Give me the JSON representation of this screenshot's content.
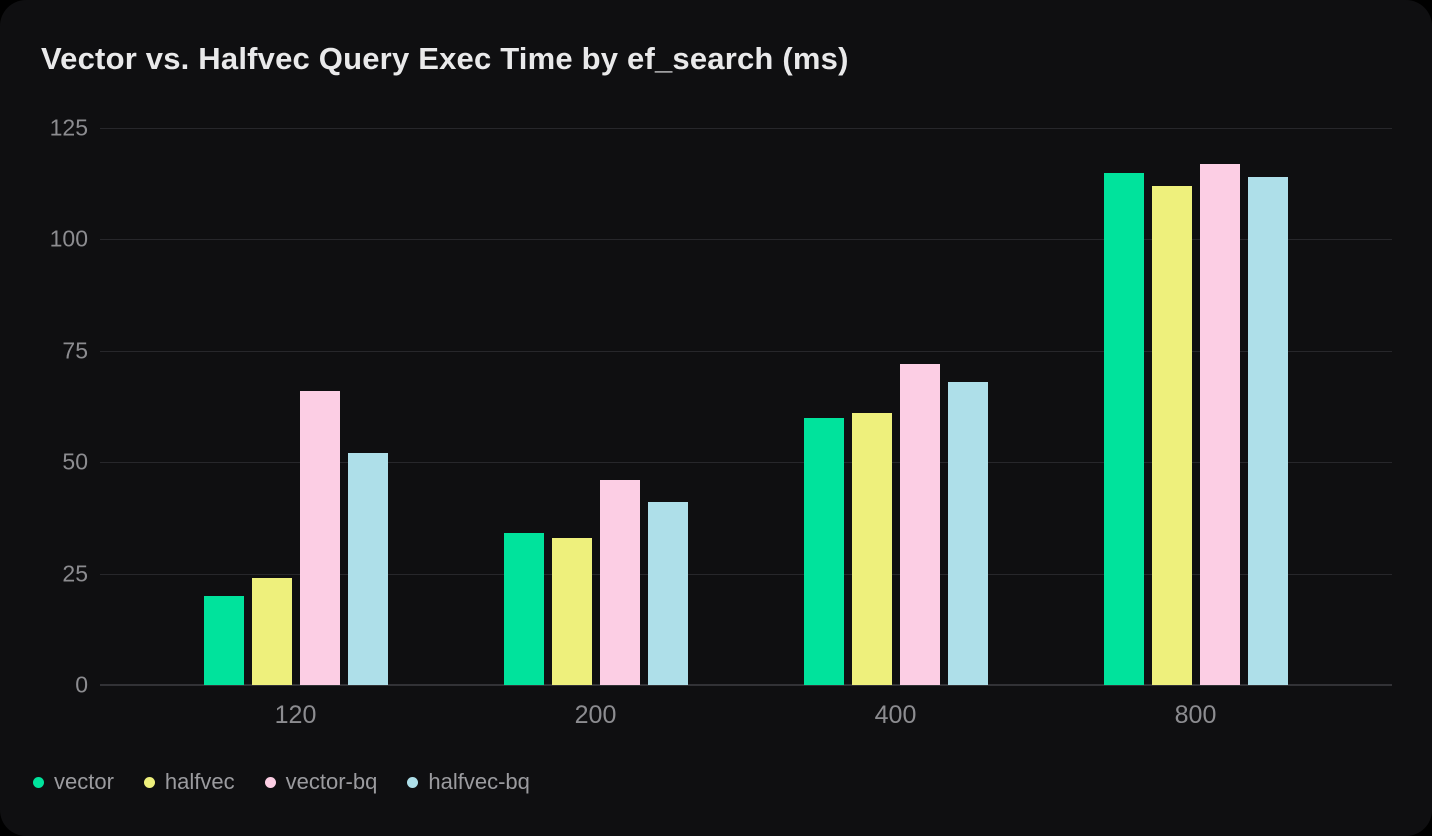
{
  "chart_data": {
    "type": "bar",
    "title": "Vector vs. Halfvec Query Exec Time by ef_search (ms)",
    "xlabel": "",
    "ylabel": "",
    "categories": [
      "120",
      "200",
      "400",
      "800"
    ],
    "series": [
      {
        "name": "vector",
        "color": "#00e39c",
        "values": [
          20,
          34,
          60,
          115
        ]
      },
      {
        "name": "halfvec",
        "color": "#eef07c",
        "values": [
          24,
          33,
          61,
          112
        ]
      },
      {
        "name": "vector-bq",
        "color": "#fccee4",
        "values": [
          66,
          46,
          72,
          117
        ]
      },
      {
        "name": "halfvec-bq",
        "color": "#aedfe9",
        "values": [
          52,
          41,
          68,
          114
        ]
      }
    ],
    "ylim": [
      0,
      125
    ],
    "yticks": [
      0,
      25,
      50,
      75,
      100,
      125
    ],
    "grid": true,
    "legend_position": "bottom-left"
  },
  "colors": {
    "page_background": "#000000",
    "card_background": "#0f0f11",
    "title_text": "#e9e9ea",
    "axis_text": "#8c8c90",
    "legend_text": "#9b9b9f",
    "gridline": "#27272b",
    "baseline": "#323236"
  }
}
